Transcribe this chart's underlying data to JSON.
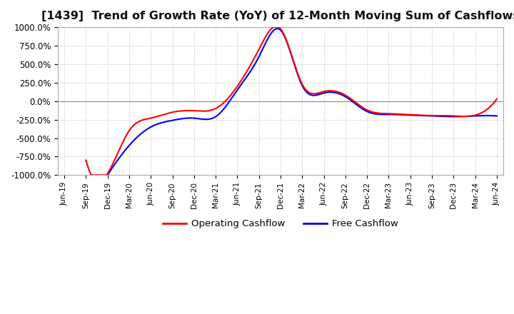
{
  "title": "[1439]  Trend of Growth Rate (YoY) of 12-Month Moving Sum of Cashflows",
  "title_fontsize": 11.5,
  "ylim": [
    -1000,
    1000
  ],
  "yticks": [
    1000,
    750,
    500,
    250,
    0,
    -250,
    -500,
    -750,
    -1000
  ],
  "ytick_labels": [
    "1000.0%",
    "750.0%",
    "500.0%",
    "250.0%",
    "0.0%",
    "-250.0%",
    "-500.0%",
    "-750.0%",
    "-1000.0%"
  ],
  "background_color": "#ffffff",
  "grid_color": "#bbbbbb",
  "legend_labels": [
    "Operating Cashflow",
    "Free Cashflow"
  ],
  "legend_colors": [
    "#ff0000",
    "#0000ff"
  ],
  "x_dates": [
    "Jun-19",
    "Sep-19",
    "Dec-19",
    "Mar-20",
    "Jun-20",
    "Sep-20",
    "Dec-20",
    "Mar-21",
    "Jun-21",
    "Sep-21",
    "Dec-21",
    "Mar-22",
    "Jun-22",
    "Sep-22",
    "Dec-22",
    "Mar-23",
    "Jun-23",
    "Sep-23",
    "Dec-23",
    "Mar-24",
    "Jun-24"
  ],
  "operating_cf_x": [
    1,
    2,
    3,
    4,
    5,
    6,
    7,
    8,
    9,
    10,
    11,
    12,
    13,
    14,
    15,
    16,
    17,
    18,
    19,
    20
  ],
  "operating_cf_y": [
    -800,
    -980,
    -400,
    -230,
    -150,
    -130,
    -100,
    200,
    700,
    980,
    230,
    130,
    80,
    -120,
    -170,
    -185,
    -195,
    -200,
    -190,
    30
  ],
  "free_cf_x": [
    2,
    3,
    4,
    5,
    6,
    7,
    8,
    9,
    10,
    11,
    12,
    13,
    14,
    15,
    16,
    17,
    18,
    19,
    20
  ],
  "free_cf_y": [
    -1000,
    -600,
    -350,
    -260,
    -230,
    -210,
    150,
    600,
    960,
    210,
    110,
    60,
    -140,
    -180,
    -190,
    -200,
    -210,
    -200,
    -200
  ]
}
